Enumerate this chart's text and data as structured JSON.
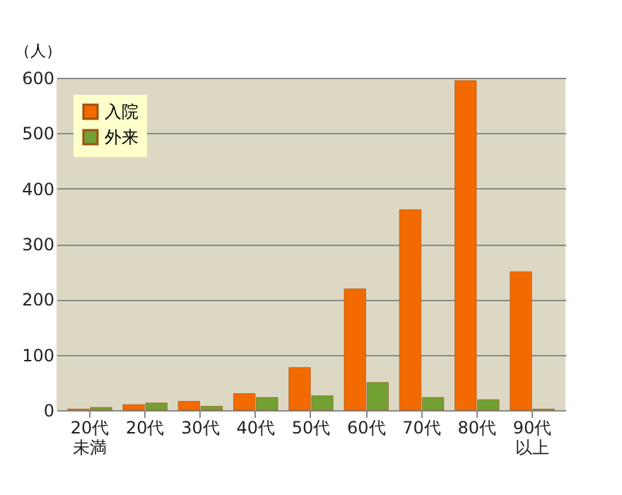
{
  "chart_data": {
    "type": "bar",
    "ylabel": "（人）",
    "categories": [
      "20代未満",
      "20代",
      "30代",
      "40代",
      "50代",
      "60代",
      "70代",
      "80代",
      "90代以上"
    ],
    "series": [
      {
        "name": "入院",
        "color": "#f26a00",
        "values": [
          2,
          10,
          16,
          30,
          77,
          219,
          362,
          595,
          250
        ]
      },
      {
        "name": "外来",
        "color": "#72a032",
        "values": [
          5,
          13,
          7,
          23,
          26,
          50,
          23,
          19,
          2
        ]
      }
    ],
    "ylim": [
      0,
      600
    ],
    "yticks": [
      0,
      100,
      200,
      300,
      400,
      500,
      600
    ],
    "grid": "y",
    "legend": "top left"
  }
}
